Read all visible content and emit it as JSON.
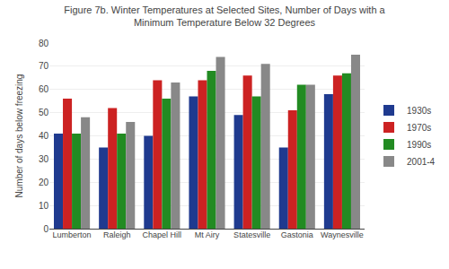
{
  "chart_data": {
    "type": "bar",
    "title": "Figure 7b. Winter Temperatures at Selected Sites, Number of Days with a\nMinimum Temperature Below 32 Degrees",
    "ylabel": "Number of days below freezing",
    "categories": [
      "Lumberton",
      "Raleigh",
      "Chapel Hill",
      "Mt Airy",
      "Statesville",
      "Gastonia",
      "Waynesville"
    ],
    "series": [
      {
        "name": "1930s",
        "color": "#1F3A8F",
        "values": [
          41,
          35,
          40,
          57,
          49,
          35,
          58
        ]
      },
      {
        "name": "1970s",
        "color": "#CC2222",
        "values": [
          56,
          52,
          64,
          64,
          66,
          51,
          66
        ]
      },
      {
        "name": "1990s",
        "color": "#228B22",
        "values": [
          41,
          41,
          56,
          68,
          57,
          62,
          67
        ]
      },
      {
        "name": "2001-4",
        "color": "#888888",
        "values": [
          48,
          46,
          63,
          74,
          71,
          62,
          75
        ]
      }
    ],
    "ylim": [
      0,
      80
    ],
    "yticks": [
      0,
      10,
      20,
      30,
      40,
      50,
      60,
      70,
      80
    ],
    "grid": true,
    "legend": "right"
  }
}
